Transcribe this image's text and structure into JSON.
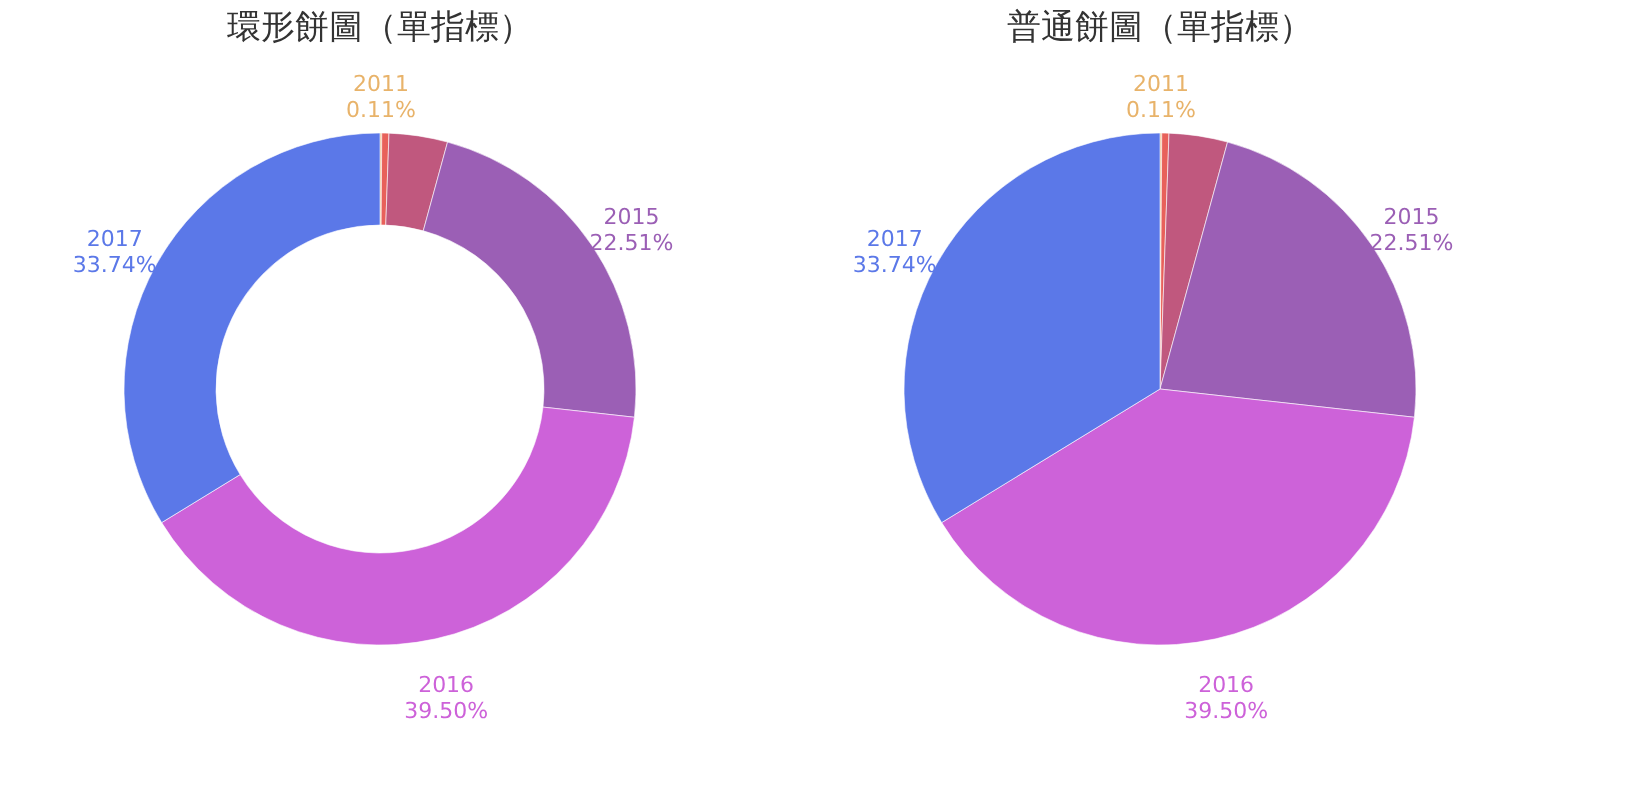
{
  "chart_data": [
    {
      "type": "donut",
      "title": "環形餅圖（單指標）",
      "categories": [
        "2011",
        null,
        null,
        "2015",
        "2016",
        "2017"
      ],
      "values": [
        0.11,
        0.45,
        3.69,
        22.51,
        39.5,
        33.74
      ],
      "value_labels": [
        "0.11%",
        null,
        null,
        "22.51%",
        "39.50%",
        "33.74%"
      ],
      "colors": [
        "#e8b36a",
        "#e8615a",
        "#c0587e",
        "#9b5fb5",
        "#cd62d9",
        "#5b78e8"
      ]
    },
    {
      "type": "pie",
      "title": "普通餅圖（單指標）",
      "categories": [
        "2011",
        null,
        null,
        "2015",
        "2016",
        "2017"
      ],
      "values": [
        0.11,
        0.45,
        3.69,
        22.51,
        39.5,
        33.74
      ],
      "value_labels": [
        "0.11%",
        null,
        null,
        "22.51%",
        "39.50%",
        "33.74%"
      ],
      "colors": [
        "#e8b36a",
        "#e8615a",
        "#c0587e",
        "#9b5fb5",
        "#cd62d9",
        "#5b78e8"
      ]
    }
  ]
}
